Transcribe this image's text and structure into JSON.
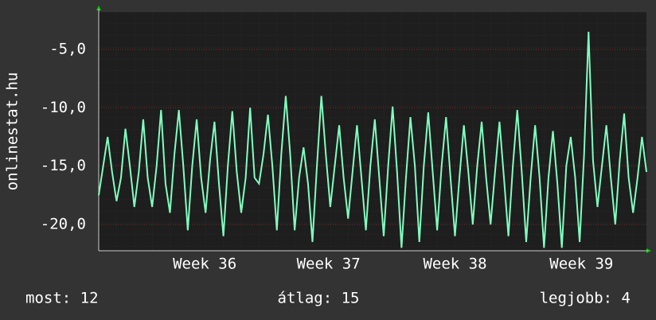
{
  "chart_data": {
    "type": "line",
    "y_label": "onlinestat.hu",
    "footer": {
      "current": "most: 12",
      "average": "átlag: 15",
      "best": "legjobb: 4"
    },
    "xlim": [
      0,
      30.75
    ],
    "xticks": [
      {
        "value": 5.95,
        "label": "Week 36"
      },
      {
        "value": 12.9,
        "label": "Week 37"
      },
      {
        "value": 20.0,
        "label": "Week 38"
      },
      {
        "value": 27.1,
        "label": "Week 39"
      }
    ],
    "ylim": [
      -22.25,
      -1.8
    ],
    "yticks": [
      {
        "value": -20,
        "label": "-20,0"
      },
      {
        "value": -15,
        "label": "-15,0"
      },
      {
        "value": -10,
        "label": "-10,0"
      },
      {
        "value": -5,
        "label": "-5,0"
      }
    ],
    "grid": true,
    "x": [
      0,
      0.25,
      0.5,
      0.75,
      1,
      1.25,
      1.5,
      1.75,
      2,
      2.25,
      2.5,
      2.75,
      3,
      3.25,
      3.5,
      3.75,
      4,
      4.25,
      4.5,
      4.75,
      5,
      5.25,
      5.5,
      5.75,
      6,
      6.25,
      6.5,
      6.75,
      7,
      7.25,
      7.5,
      7.75,
      8,
      8.25,
      8.5,
      8.75,
      9,
      9.25,
      9.5,
      9.75,
      10,
      10.25,
      10.5,
      10.75,
      11,
      11.25,
      11.5,
      11.75,
      12,
      12.25,
      12.5,
      12.75,
      13,
      13.25,
      13.5,
      13.75,
      14,
      14.25,
      14.5,
      14.75,
      15,
      15.25,
      15.5,
      15.75,
      16,
      16.25,
      16.5,
      16.75,
      17,
      17.25,
      17.5,
      17.75,
      18,
      18.25,
      18.5,
      18.75,
      19,
      19.25,
      19.5,
      19.75,
      20,
      20.25,
      20.5,
      20.75,
      21,
      21.25,
      21.5,
      21.75,
      22,
      22.25,
      22.5,
      22.75,
      23,
      23.25,
      23.5,
      23.75,
      24,
      24.25,
      24.5,
      24.75,
      25,
      25.25,
      25.5,
      25.75,
      26,
      26.25,
      26.5,
      26.75,
      27,
      27.25,
      27.5,
      27.75,
      28,
      28.25,
      28.5,
      28.75,
      29,
      29.25,
      29.5,
      29.75,
      30,
      30.25,
      30.5,
      30.75
    ],
    "series": [
      {
        "name": "onlinestat.hu",
        "color": "#80ffc0",
        "values": [
          -17.5,
          -15,
          -12.5,
          -15.5,
          -18,
          -16,
          -11.8,
          -15,
          -18.5,
          -15.5,
          -11,
          -16,
          -18.5,
          -15,
          -10.2,
          -16.5,
          -19,
          -14,
          -10.2,
          -15,
          -20.5,
          -15,
          -11,
          -16,
          -19,
          -14.5,
          -11.2,
          -16.5,
          -21,
          -15,
          -10.3,
          -15.5,
          -19,
          -16,
          -10,
          -16,
          -16.5,
          -14,
          -10.6,
          -15,
          -20.5,
          -14,
          -9,
          -14,
          -20.5,
          -16,
          -13.4,
          -16.5,
          -21.5,
          -15,
          -9,
          -14,
          -18.5,
          -15,
          -11.5,
          -16,
          -19.5,
          -15.5,
          -11.5,
          -16,
          -20.5,
          -15,
          -11,
          -16,
          -21,
          -15,
          -9.9,
          -15.5,
          -22,
          -16,
          -10.8,
          -15,
          -21.5,
          -15,
          -10.4,
          -15.5,
          -20.5,
          -15,
          -10.8,
          -16,
          -21,
          -16,
          -11.5,
          -15.5,
          -20,
          -15,
          -11.2,
          -16,
          -20,
          -15.5,
          -11.2,
          -16,
          -21,
          -15,
          -10.2,
          -15.5,
          -21.5,
          -16,
          -11.5,
          -16,
          -22,
          -16,
          -12,
          -16.5,
          -22,
          -15,
          -12.5,
          -16,
          -21.5,
          -14,
          -3.5,
          -14.5,
          -18.5,
          -15,
          -11.5,
          -16,
          -20,
          -14.5,
          -10.5,
          -16,
          -19,
          -16,
          -12.5,
          -15.5
        ]
      }
    ]
  }
}
